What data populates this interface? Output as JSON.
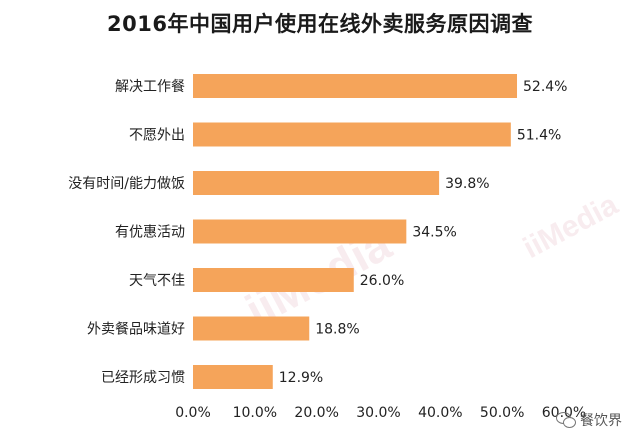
{
  "chart_data": {
    "type": "bar",
    "orientation": "horizontal",
    "title": "2016年中国用户使用在线外卖服务原因调查",
    "categories": [
      "解决工作餐",
      "不愿外出",
      "没有时间/能力做饭",
      "有优惠活动",
      "天气不佳",
      "外卖餐品味道好",
      "已经形成习惯"
    ],
    "values": [
      52.4,
      51.4,
      39.8,
      34.5,
      26.0,
      18.8,
      12.9
    ],
    "value_labels": [
      "52.4%",
      "51.4%",
      "39.8%",
      "34.5%",
      "26.0%",
      "18.8%",
      "12.9%"
    ],
    "xlim": [
      0,
      60
    ],
    "xticks": [
      "0.0%",
      "10.0%",
      "20.0%",
      "30.0%",
      "40.0%",
      "50.0%",
      "60.0%"
    ],
    "grid": false,
    "colors": {
      "bar": "#F5A45A"
    }
  },
  "watermark": "iiMedia",
  "source": "餐饮界"
}
